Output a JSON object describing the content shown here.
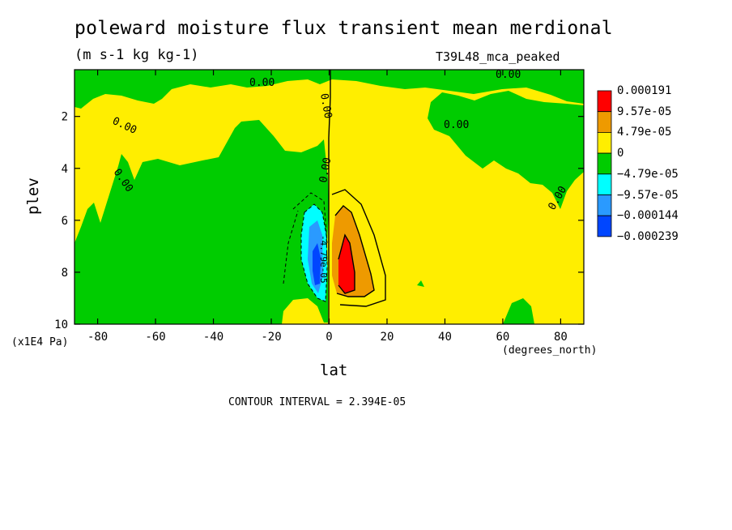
{
  "chart_data": {
    "type": "contour",
    "title": "poleward moisture flux transient mean merdional",
    "units": "(m s-1 kg kg-1)",
    "dataset": "T39L48_mca_peaked",
    "xlabel": "lat",
    "ylabel": "plev",
    "x_units": "(degrees_north)",
    "y_units": "(x1E4 Pa)",
    "xlim": [
      -88,
      88
    ],
    "ylim": [
      10,
      0.2
    ],
    "x_ticks": [
      -80,
      -60,
      -40,
      -20,
      0,
      20,
      40,
      60,
      80
    ],
    "y_ticks": [
      2,
      4,
      6,
      8,
      10
    ],
    "contour_interval": "CONTOUR INTERVAL = 2.394E-05",
    "legend": {
      "levels": [
        "0.000191",
        "9.57e-05",
        "4.79e-05",
        "0",
        "−4.79e-05",
        "−9.57e-05",
        "−0.000144",
        "−0.000239"
      ],
      "colors": [
        "#ff0000",
        "#ee9a00",
        "#ffee00",
        "#00cc00",
        "#00ffff",
        "#2a9aff",
        "#0046ff"
      ]
    },
    "contour_labels": [
      "0.00",
      "0.00",
      "0.00",
      "0.00",
      "0.00",
      "0.00",
      "0.00",
      "0.00",
      "-4.79e-05"
    ]
  }
}
